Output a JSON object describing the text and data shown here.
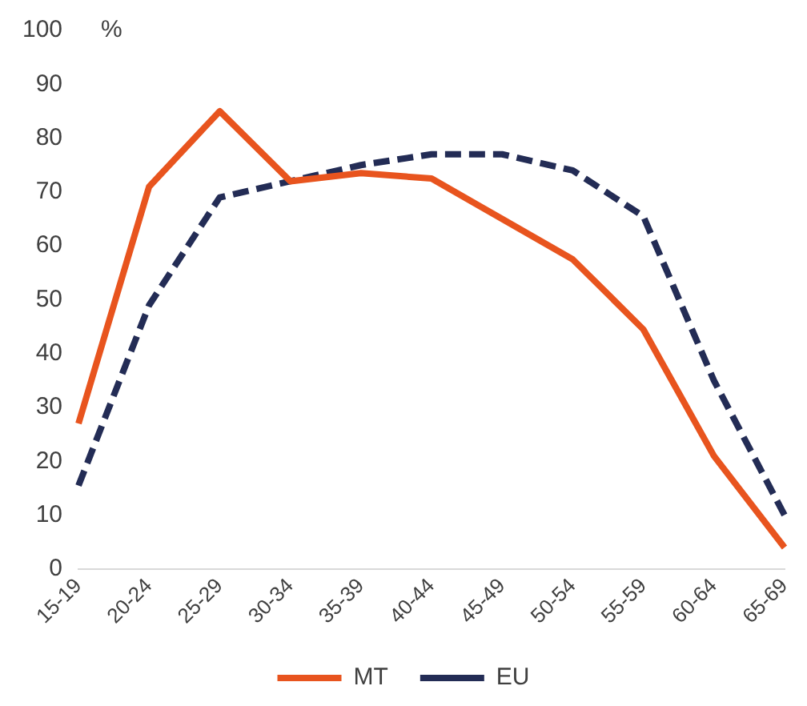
{
  "chart_data": {
    "type": "line",
    "ylabel": "%",
    "categories": [
      "15-19",
      "20-24",
      "25-29",
      "30-34",
      "35-39",
      "40-44",
      "45-49",
      "50-54",
      "55-59",
      "60-64",
      "65-69"
    ],
    "series": [
      {
        "name": "MT",
        "color": "#e8541e",
        "line_style": "solid",
        "values": [
          27,
          71,
          85,
          72,
          73.5,
          72.5,
          65,
          57.5,
          44.5,
          21,
          4
        ]
      },
      {
        "name": "EU",
        "color": "#232c55",
        "line_style": "dashed",
        "values": [
          15.5,
          49,
          69,
          72,
          75,
          77,
          77,
          74,
          65.5,
          35,
          10
        ]
      }
    ],
    "ylim": [
      0,
      100
    ],
    "yticks": [
      0,
      10,
      20,
      30,
      40,
      50,
      60,
      70,
      80,
      90,
      100
    ],
    "grid": false,
    "legend": "bottom",
    "marker": "none"
  }
}
